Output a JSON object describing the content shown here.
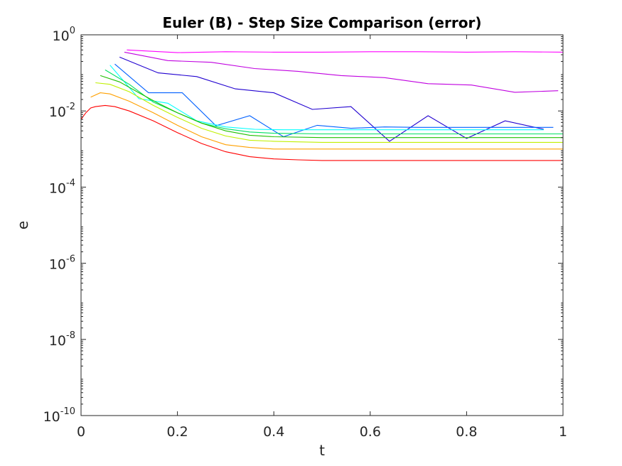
{
  "chart_data": {
    "type": "line",
    "title": "Euler (B) - Step Size Comparison (error)",
    "xlabel": "t",
    "ylabel": "e",
    "xlim": [
      0,
      1
    ],
    "ylim": [
      1e-10,
      1
    ],
    "yscale": "log",
    "grid": false,
    "xticks": [
      0,
      0.2,
      0.4,
      0.6,
      0.8,
      1
    ],
    "xtick_labels": [
      "0",
      "0.2",
      "0.4",
      "0.6",
      "0.8",
      "1"
    ],
    "yticks": [
      {
        "value": 1e-10,
        "base": "10",
        "exp": "-10"
      },
      {
        "value": 1e-08,
        "base": "10",
        "exp": "-8"
      },
      {
        "value": 1e-06,
        "base": "10",
        "exp": "-6"
      },
      {
        "value": 0.0001,
        "base": "10",
        "exp": "-4"
      },
      {
        "value": 0.01,
        "base": "10",
        "exp": "-2"
      },
      {
        "value": 1,
        "base": "10",
        "exp": "0"
      }
    ],
    "series": [
      {
        "color": "#ff00ff",
        "x": [
          0.095,
          0.2,
          0.3,
          0.4,
          0.5,
          0.6,
          0.7,
          0.8,
          0.9,
          1.0
        ],
        "y": [
          0.4,
          0.34,
          0.36,
          0.35,
          0.35,
          0.36,
          0.36,
          0.35,
          0.36,
          0.35
        ]
      },
      {
        "color": "#c000e0",
        "x": [
          0.09,
          0.18,
          0.27,
          0.36,
          0.45,
          0.54,
          0.63,
          0.72,
          0.81,
          0.9,
          0.99
        ],
        "y": [
          0.35,
          0.21,
          0.19,
          0.13,
          0.11,
          0.085,
          0.075,
          0.052,
          0.048,
          0.031,
          0.034
        ]
      },
      {
        "color": "#2000d0",
        "x": [
          0.08,
          0.16,
          0.24,
          0.32,
          0.4,
          0.48,
          0.56,
          0.64,
          0.72,
          0.8,
          0.88,
          0.96
        ],
        "y": [
          0.26,
          0.1,
          0.08,
          0.038,
          0.03,
          0.011,
          0.013,
          0.0016,
          0.0075,
          0.0019,
          0.0055,
          0.0033
        ]
      },
      {
        "color": "#0060ff",
        "x": [
          0.07,
          0.14,
          0.21,
          0.28,
          0.35,
          0.42,
          0.49,
          0.56,
          0.63,
          0.7,
          0.77,
          0.84,
          0.91,
          0.98
        ],
        "y": [
          0.17,
          0.03,
          0.03,
          0.0041,
          0.0075,
          0.0021,
          0.0042,
          0.0035,
          0.0038,
          0.0037,
          0.0037,
          0.0037,
          0.0037,
          0.0037
        ]
      },
      {
        "color": "#00ffff",
        "x": [
          0.06,
          0.12,
          0.18,
          0.24,
          0.3,
          0.36,
          0.42,
          0.48,
          0.54,
          0.6,
          0.66,
          0.72,
          0.78,
          0.84,
          0.9,
          0.96
        ],
        "y": [
          0.16,
          0.021,
          0.016,
          0.0055,
          0.0038,
          0.0033,
          0.0032,
          0.0032,
          0.0032,
          0.0032,
          0.0032,
          0.0032,
          0.0032,
          0.0032,
          0.0032,
          0.0032
        ]
      },
      {
        "color": "#00e060",
        "x": [
          0.05,
          0.1,
          0.15,
          0.2,
          0.25,
          0.3,
          0.35,
          0.4,
          0.5,
          0.6,
          0.7,
          0.8,
          0.9,
          1.0
        ],
        "y": [
          0.12,
          0.05,
          0.017,
          0.009,
          0.0048,
          0.0034,
          0.0028,
          0.0026,
          0.0025,
          0.0025,
          0.0025,
          0.0025,
          0.0025,
          0.0025
        ]
      },
      {
        "color": "#20c000",
        "x": [
          0.04,
          0.08,
          0.12,
          0.16,
          0.2,
          0.25,
          0.3,
          0.35,
          0.4,
          0.5,
          0.6,
          0.7,
          0.8,
          0.9,
          1.0
        ],
        "y": [
          0.085,
          0.058,
          0.03,
          0.016,
          0.009,
          0.0048,
          0.003,
          0.0023,
          0.0021,
          0.002,
          0.002,
          0.002,
          0.002,
          0.002,
          0.002
        ]
      },
      {
        "color": "#c0f000",
        "x": [
          0.03,
          0.06,
          0.1,
          0.15,
          0.2,
          0.25,
          0.3,
          0.35,
          0.4,
          0.5,
          0.6,
          0.7,
          0.8,
          0.9,
          1.0
        ],
        "y": [
          0.055,
          0.05,
          0.032,
          0.014,
          0.0068,
          0.0035,
          0.0022,
          0.0017,
          0.0016,
          0.0015,
          0.0015,
          0.0015,
          0.0015,
          0.0015,
          0.0015
        ]
      },
      {
        "color": "#ffa000",
        "x": [
          0.02,
          0.04,
          0.06,
          0.1,
          0.15,
          0.2,
          0.25,
          0.3,
          0.35,
          0.4,
          0.5,
          0.6,
          0.7,
          0.8,
          0.9,
          1.0
        ],
        "y": [
          0.023,
          0.03,
          0.028,
          0.018,
          0.009,
          0.0042,
          0.0021,
          0.0013,
          0.0011,
          0.001,
          0.001,
          0.001,
          0.001,
          0.001,
          0.001,
          0.001
        ]
      },
      {
        "color": "#ff0000",
        "x": [
          0.0,
          0.01,
          0.02,
          0.03,
          0.05,
          0.07,
          0.1,
          0.15,
          0.2,
          0.25,
          0.3,
          0.35,
          0.4,
          0.45,
          0.5,
          0.6,
          0.7,
          0.8,
          0.9,
          1.0
        ],
        "y": [
          0.006,
          0.009,
          0.012,
          0.013,
          0.014,
          0.013,
          0.01,
          0.0055,
          0.0027,
          0.0014,
          0.00085,
          0.00063,
          0.00055,
          0.00052,
          0.0005,
          0.0005,
          0.0005,
          0.0005,
          0.0005,
          0.0005
        ]
      }
    ]
  }
}
